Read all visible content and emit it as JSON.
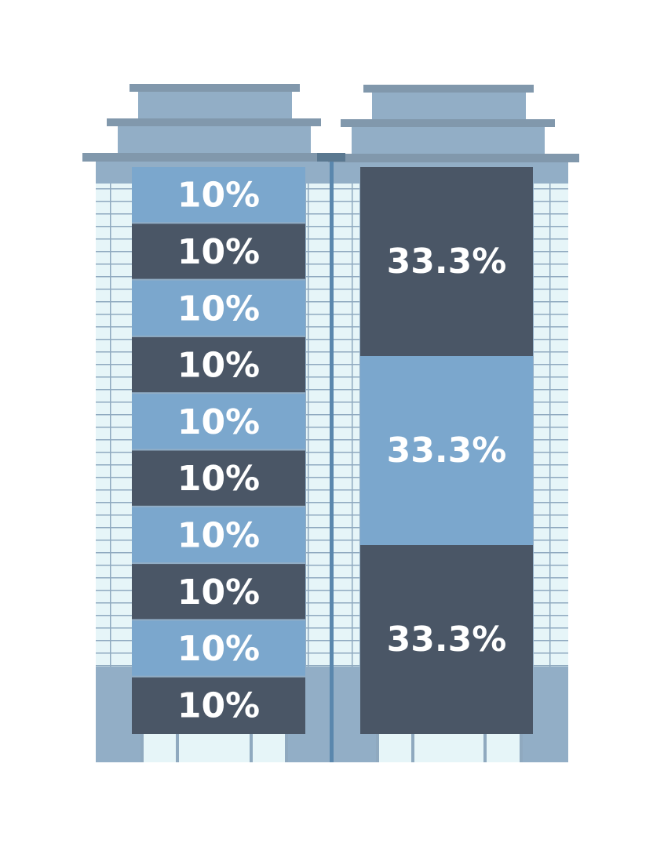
{
  "colors": {
    "light_segment": "#7ba7cd",
    "dark_segment": "#4a5666",
    "label_text": "#ffffff",
    "building_body": "#92aec6",
    "roof_trim": "#8198ac",
    "window_glass": "#e6f5f8",
    "window_frame": "#8fa9bf",
    "divider": "#5a87ad"
  },
  "chart_data": [
    {
      "type": "bar",
      "layout": "stacked-vertical",
      "segments": [
        {
          "value": 10,
          "label": "10%",
          "color": "light_segment"
        },
        {
          "value": 10,
          "label": "10%",
          "color": "dark_segment"
        },
        {
          "value": 10,
          "label": "10%",
          "color": "light_segment"
        },
        {
          "value": 10,
          "label": "10%",
          "color": "dark_segment"
        },
        {
          "value": 10,
          "label": "10%",
          "color": "light_segment"
        },
        {
          "value": 10,
          "label": "10%",
          "color": "dark_segment"
        },
        {
          "value": 10,
          "label": "10%",
          "color": "light_segment"
        },
        {
          "value": 10,
          "label": "10%",
          "color": "dark_segment"
        },
        {
          "value": 10,
          "label": "10%",
          "color": "light_segment"
        },
        {
          "value": 10,
          "label": "10%",
          "color": "dark_segment"
        }
      ]
    },
    {
      "type": "bar",
      "layout": "stacked-vertical",
      "segments": [
        {
          "value": 33.3,
          "label": "33.3%",
          "color": "dark_segment"
        },
        {
          "value": 33.3,
          "label": "33.3%",
          "color": "light_segment"
        },
        {
          "value": 33.3,
          "label": "33.3%",
          "color": "dark_segment"
        }
      ]
    }
  ]
}
